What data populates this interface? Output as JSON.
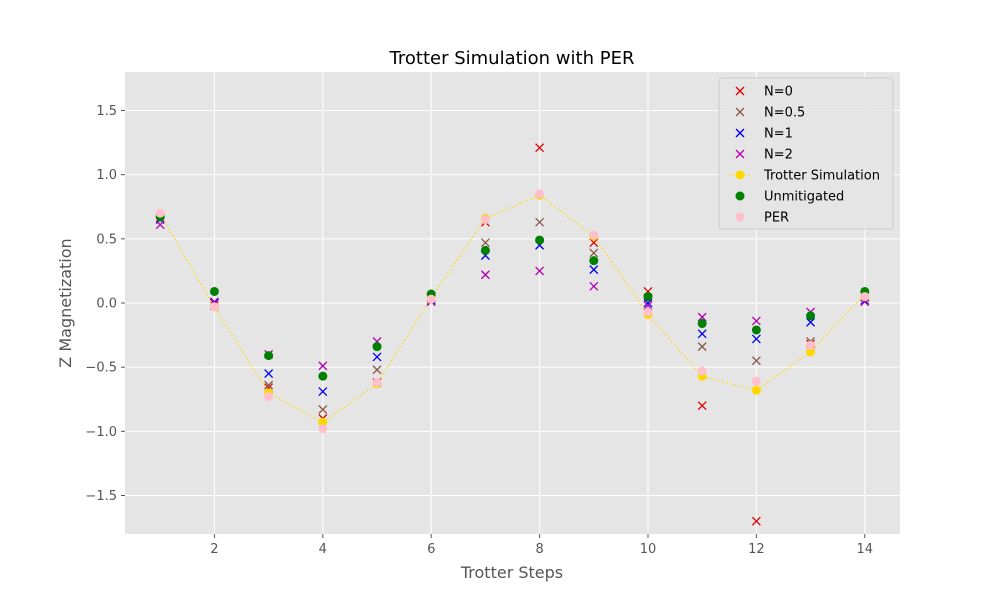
{
  "chart_data": {
    "type": "scatter",
    "title": "Trotter Simulation with PER",
    "xlabel": "Trotter Steps",
    "ylabel": "Z Magnetization",
    "xlim": [
      0.35,
      14.65
    ],
    "ylim": [
      -1.8,
      1.8
    ],
    "xticks": [
      2,
      4,
      6,
      8,
      10,
      12,
      14
    ],
    "yticks": [
      -1.5,
      -1.0,
      -0.5,
      0.0,
      0.5,
      1.0,
      1.5
    ],
    "xtick_labels": [
      "2",
      "4",
      "6",
      "8",
      "10",
      "12",
      "14"
    ],
    "ytick_labels": [
      "−1.5",
      "−1.0",
      "−0.5",
      "0.0",
      "0.5",
      "1.0",
      "1.5"
    ],
    "grid": true,
    "legend_position": "top-right",
    "x": [
      1,
      2,
      3,
      4,
      5,
      6,
      7,
      8,
      9,
      10,
      11,
      12,
      13,
      14
    ],
    "series": [
      {
        "name": "N=0",
        "marker": "x",
        "color": "#e00000",
        "values": [
          0.66,
          -0.02,
          -0.66,
          -0.9,
          -0.62,
          0.04,
          0.63,
          1.21,
          0.47,
          0.09,
          -0.8,
          -1.7,
          -0.32,
          0.05
        ]
      },
      {
        "name": "N=0.5",
        "marker": "x",
        "color": "#8b5a4a",
        "values": [
          0.66,
          0.0,
          -0.64,
          -0.83,
          -0.52,
          0.03,
          0.47,
          0.63,
          0.39,
          0.04,
          -0.34,
          -0.45,
          -0.3,
          0.04
        ]
      },
      {
        "name": "N=1",
        "marker": "x",
        "color": "#0000ee",
        "values": [
          0.65,
          0.0,
          -0.55,
          -0.69,
          -0.42,
          0.02,
          0.37,
          0.45,
          0.26,
          0.0,
          -0.24,
          -0.28,
          -0.15,
          0.02
        ]
      },
      {
        "name": "N=2",
        "marker": "x",
        "color": "#b400b4",
        "values": [
          0.61,
          0.01,
          -0.4,
          -0.49,
          -0.3,
          0.01,
          0.22,
          0.25,
          0.13,
          -0.02,
          -0.11,
          -0.14,
          -0.07,
          0.01
        ]
      },
      {
        "name": "Trotter Simulation",
        "marker": "dotted-line-circle",
        "color": "#ffd700",
        "values": [
          0.69,
          -0.03,
          -0.7,
          -0.93,
          -0.63,
          0.04,
          0.66,
          0.84,
          0.52,
          -0.09,
          -0.57,
          -0.68,
          -0.38,
          0.07
        ]
      },
      {
        "name": "Unmitigated",
        "marker": "circle",
        "color": "#008000",
        "values": [
          0.67,
          0.09,
          -0.41,
          -0.57,
          -0.34,
          0.07,
          0.41,
          0.49,
          0.33,
          0.05,
          -0.16,
          -0.21,
          -0.1,
          0.09
        ]
      },
      {
        "name": "PER",
        "marker": "circle",
        "color": "#ffc0cb",
        "values": [
          0.7,
          -0.03,
          -0.73,
          -0.98,
          -0.62,
          0.03,
          0.65,
          0.85,
          0.53,
          -0.07,
          -0.53,
          -0.61,
          -0.33,
          0.05
        ]
      }
    ]
  }
}
